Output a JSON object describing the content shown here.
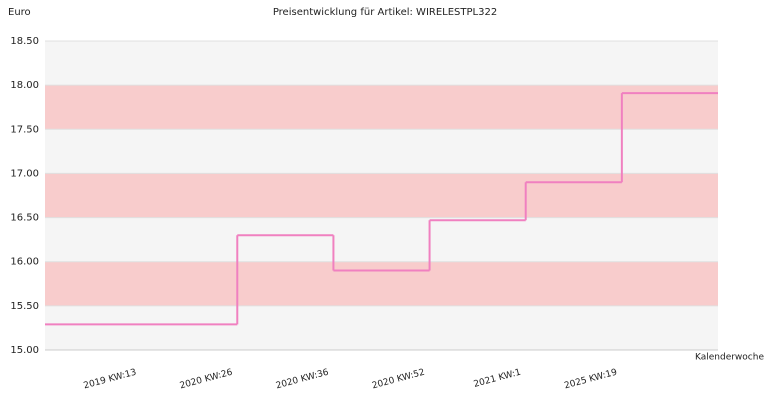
{
  "chart_data": {
    "type": "step",
    "title": "Preisentwicklung für Artikel: WIRELESTPL322",
    "y_label": "Euro",
    "x_label": "Kalenderwoche",
    "categories": [
      "2019 KW:13",
      "2020 KW:26",
      "2020 KW:36",
      "2020 KW:52",
      "2021 KW:1",
      "2025 KW:19"
    ],
    "values": [
      15.29,
      16.3,
      15.9,
      16.47,
      16.9,
      17.91
    ],
    "color": "#f080c0",
    "ylim": [
      15,
      18.5
    ],
    "yticks": [
      {
        "value": 15,
        "label": "15.00"
      },
      {
        "value": 15.5,
        "label": "15.50"
      },
      {
        "value": 16,
        "label": "16.00"
      },
      {
        "value": 16.5,
        "label": "16.50"
      },
      {
        "value": 17,
        "label": "17.00"
      },
      {
        "value": 17.5,
        "label": "17.50"
      },
      {
        "value": 18,
        "label": "18.00"
      },
      {
        "value": 18.5,
        "label": "18.50"
      }
    ],
    "band_colors": [
      "#f5f5f5",
      "#f8cccc"
    ]
  }
}
